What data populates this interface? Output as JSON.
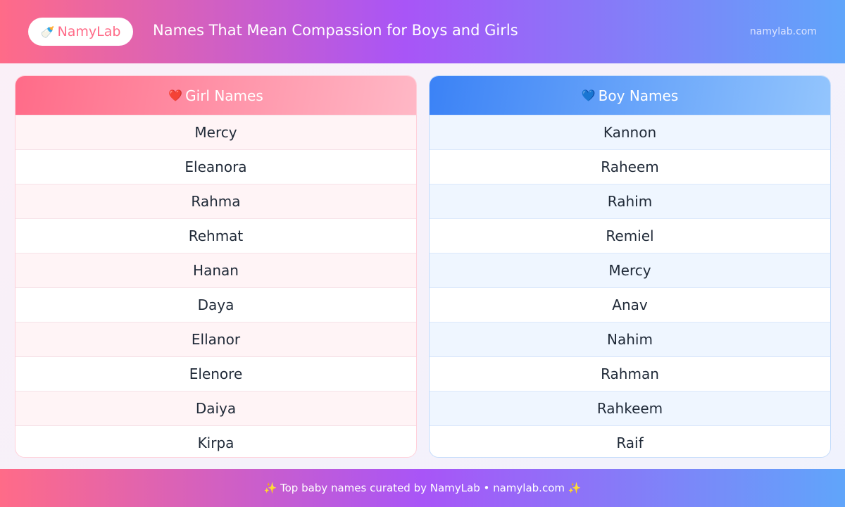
{
  "header": {
    "logo_icon": "baby-bottle-icon",
    "logo_emoji": "🍼",
    "logo_text": "NamyLab",
    "title": "Names That Mean Compassion for Boys and Girls",
    "site": "namylab.com"
  },
  "girls": {
    "icon": "❤️",
    "title": "Girl Names",
    "names": [
      "Mercy",
      "Eleanora",
      "Rahma",
      "Rehmat",
      "Hanan",
      "Daya",
      "Ellanor",
      "Elenore",
      "Daiya",
      "Kirpa"
    ]
  },
  "boys": {
    "icon": "💙",
    "title": "Boy Names",
    "names": [
      "Kannon",
      "Raheem",
      "Rahim",
      "Remiel",
      "Mercy",
      "Anav",
      "Nahim",
      "Rahman",
      "Rahkeem",
      "Raif"
    ]
  },
  "footer": {
    "text": "✨ Top baby names curated by NamyLab • namylab.com ✨"
  },
  "colors": {
    "pink": "#ff6b88",
    "purple": "#a855f7",
    "blue": "#60a5fa"
  }
}
